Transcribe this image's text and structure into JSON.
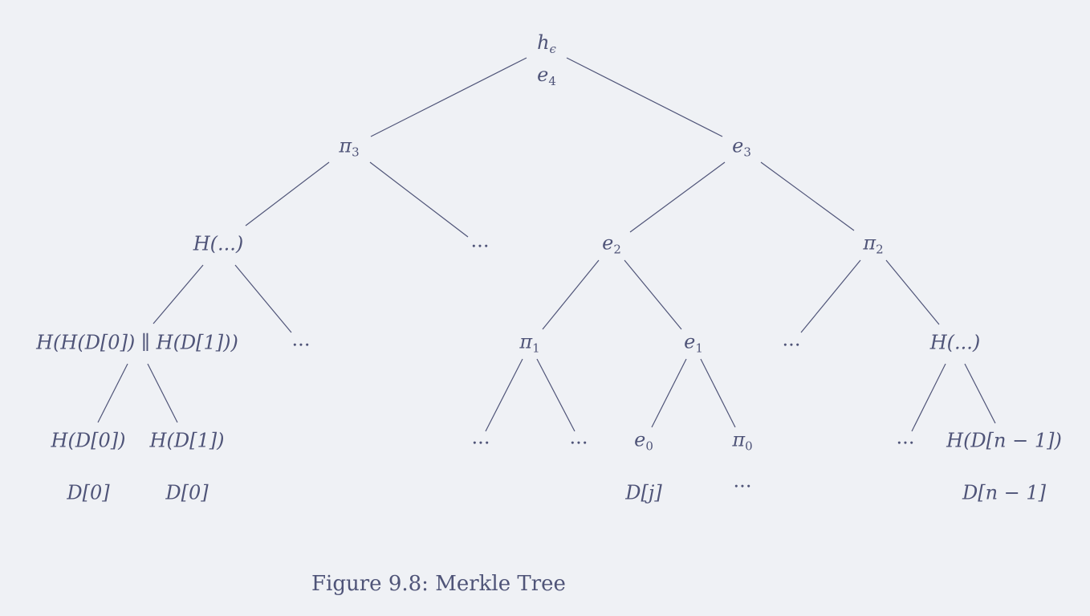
{
  "nodes": {
    "root_h": "h",
    "root_h_sub": "ϵ",
    "root_e": "e",
    "root_e_sub": "4",
    "pi3": "π",
    "pi3_sub": "3",
    "e3": "e",
    "e3_sub": "3",
    "h_dots_left": "H(...)",
    "dots_l2_a": "...",
    "e2": "e",
    "e2_sub": "2",
    "pi2": "π",
    "pi2_sub": "2",
    "h_concat": "H(H(D[0]) ∥ H(D[1]))",
    "dots_l3_a": "...",
    "pi1": "π",
    "pi1_sub": "1",
    "e1": "e",
    "e1_sub": "1",
    "dots_l3_b": "...",
    "h_dots_right": "H(...)",
    "h_d0": "H(D[0])",
    "h_d1": "H(D[1])",
    "dots_l4_a": "...",
    "dots_l4_b": "...",
    "e0": "e",
    "e0_sub": "0",
    "pi0": "π",
    "pi0_sub": "0",
    "dots_l4_c": "...",
    "h_dn1": "H(D[n − 1])",
    "d0_a": "D[0]",
    "d0_b": "D[0]",
    "dj": "D[j]",
    "dots_below_pi0": "...",
    "dn1": "D[n − 1]"
  },
  "caption": "Figure 9.8: Merkle Tree"
}
